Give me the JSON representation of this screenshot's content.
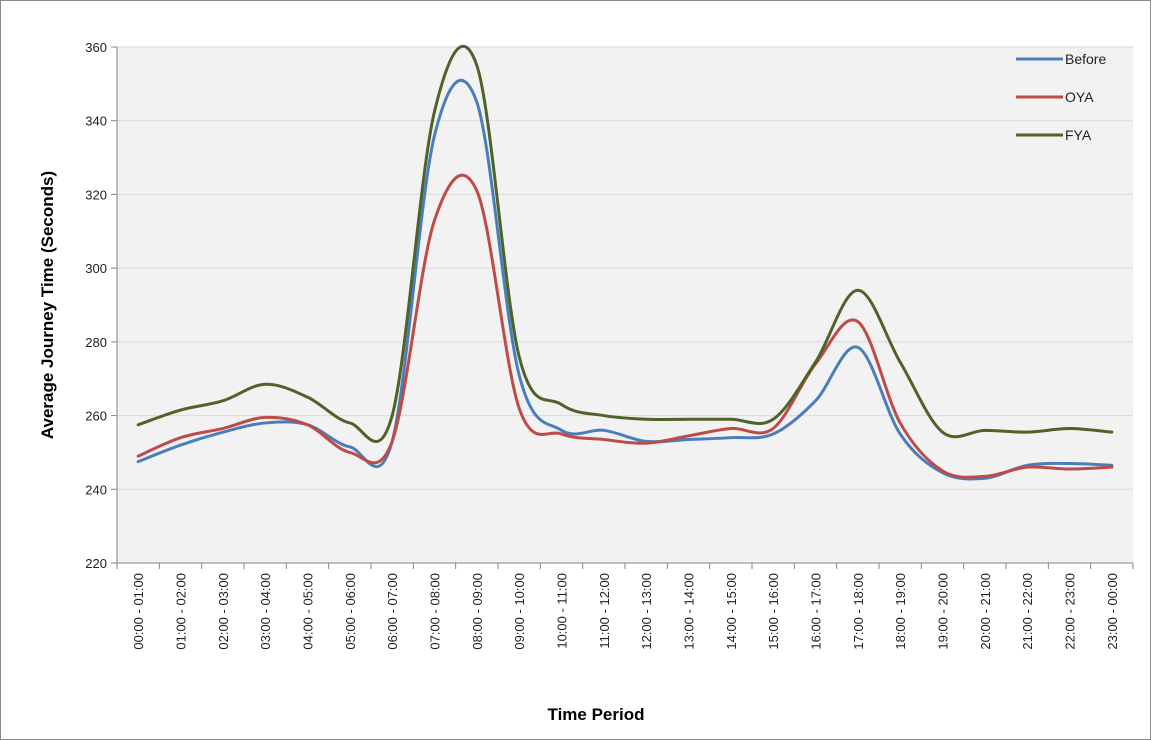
{
  "chart_data": {
    "type": "line",
    "title": "",
    "xlabel": "Time Period",
    "ylabel": "Average Journey Time (Seconds)",
    "ylim": [
      220,
      360
    ],
    "yticks": [
      220,
      240,
      260,
      280,
      300,
      320,
      340,
      360
    ],
    "grid": true,
    "legend_position": "top-right",
    "categories": [
      "00:00 - 01:00",
      "01:00 - 02:00",
      "02:00 - 03:00",
      "03:00 - 04:00",
      "04:00 - 05:00",
      "05:00 - 06:00",
      "06:00 - 07:00",
      "07:00 - 08:00",
      "08:00 - 09:00",
      "09:00 - 10:00",
      "10:00 - 11:00",
      "11:00 - 12:00",
      "12:00 - 13:00",
      "13:00 - 14:00",
      "14:00 - 15:00",
      "15:00 - 16:00",
      "16:00 - 17:00",
      "17:00 - 18:00",
      "18:00 - 19:00",
      "19:00 - 20:00",
      "20:00 - 21:00",
      "21:00 - 22:00",
      "22:00 - 23:00",
      "23:00 - 00:00"
    ],
    "series": [
      {
        "name": "Before",
        "color": "#4a7ebb",
        "values": [
          247.5,
          252,
          255.5,
          258,
          257.5,
          251.5,
          253,
          336,
          345,
          271,
          256,
          256,
          253,
          253.5,
          254,
          255,
          264,
          278.5,
          255,
          244.5,
          243,
          246.5,
          247,
          246.5
        ]
      },
      {
        "name": "OYA",
        "color": "#be4b48",
        "values": [
          249,
          254,
          256.5,
          259.5,
          257.5,
          250,
          253,
          313,
          321,
          262,
          255,
          253.5,
          252.5,
          254.5,
          256.5,
          256.5,
          274,
          285.5,
          258,
          245,
          243.5,
          246,
          245.5,
          246
        ]
      },
      {
        "name": "FYA",
        "color": "#4f6228",
        "values": [
          257.5,
          261.5,
          264,
          268.5,
          265,
          258,
          260,
          342.5,
          355,
          276,
          263,
          260,
          259,
          259,
          259,
          259,
          274.5,
          294,
          274.5,
          255.5,
          256,
          255.5,
          256.5,
          255.5
        ]
      }
    ]
  }
}
